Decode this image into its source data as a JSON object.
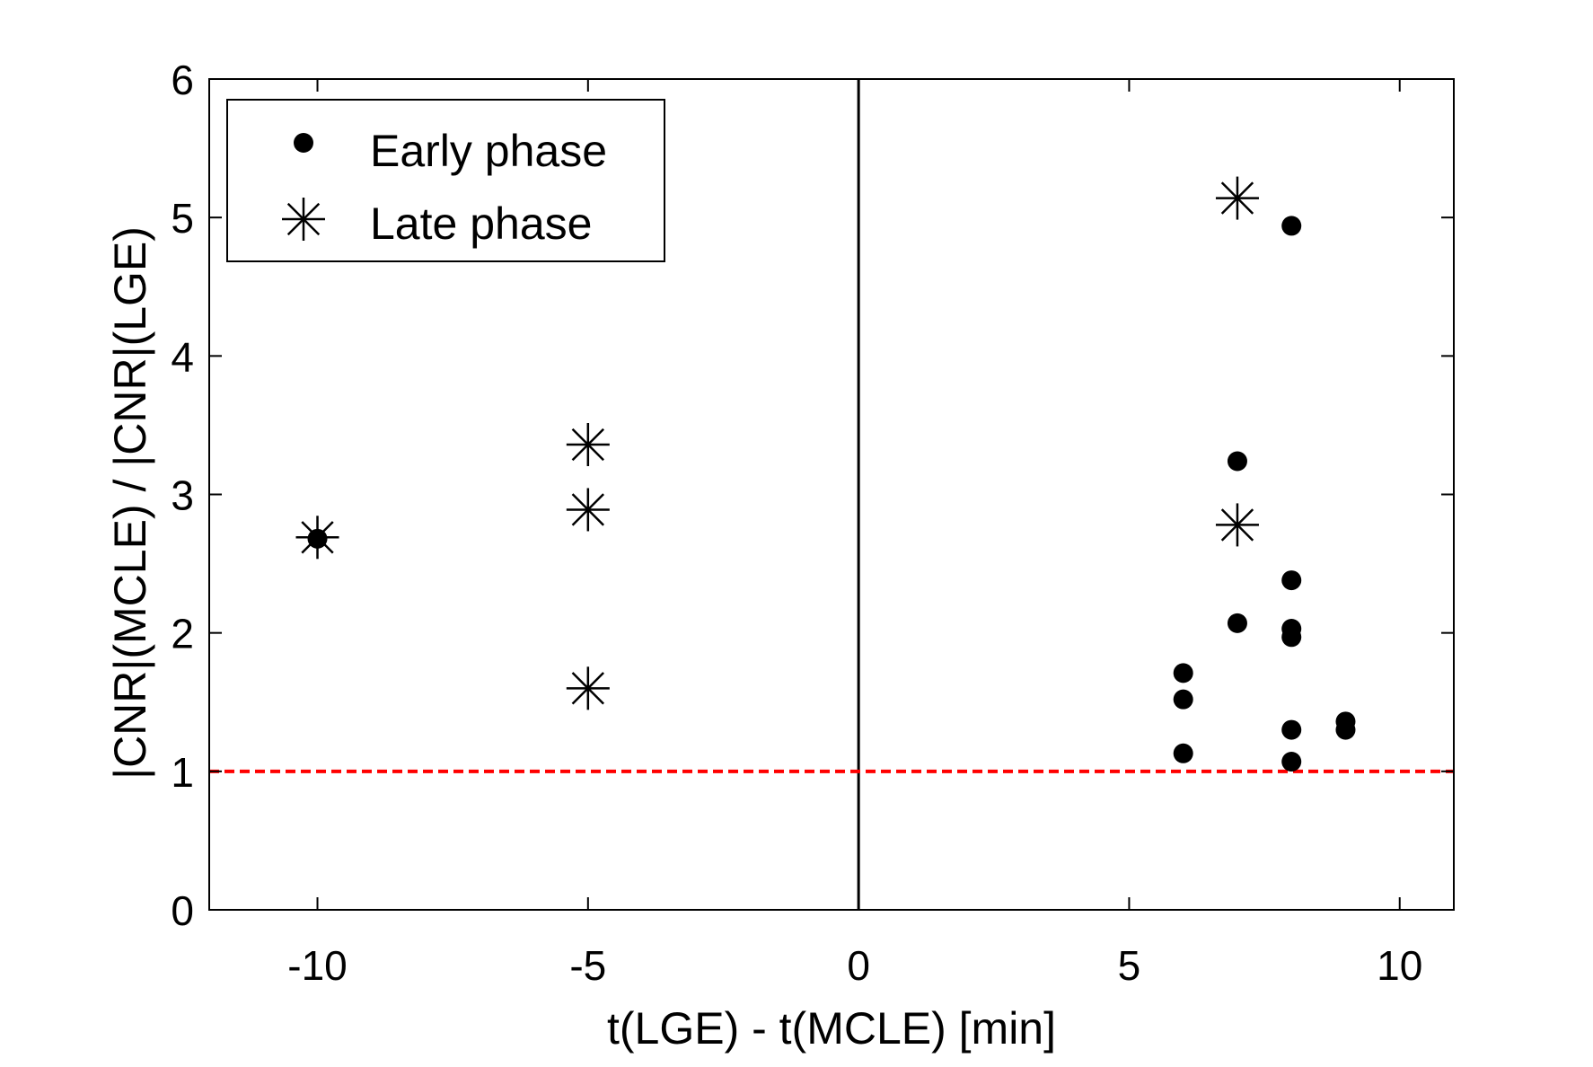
{
  "chart_data": {
    "type": "scatter",
    "xlabel": "t(LGE) - t(MCLE) [min]",
    "ylabel": "|CNR|(MCLE) / |CNR|(LGE)",
    "xlim": [
      -12,
      11
    ],
    "ylim": [
      0,
      6
    ],
    "xticks": [
      -10,
      -5,
      0,
      5,
      10
    ],
    "yticks": [
      0,
      1,
      2,
      3,
      4,
      5,
      6
    ],
    "xtick_labels": [
      "-10",
      "-5",
      "0",
      "5",
      "10"
    ],
    "ytick_labels": [
      "0",
      "1",
      "2",
      "3",
      "4",
      "5",
      "6"
    ],
    "reference_lines": [
      {
        "orientation": "vertical",
        "value": 0,
        "color": "#000000",
        "style": "solid"
      },
      {
        "orientation": "horizontal",
        "value": 1,
        "color": "#ff0000",
        "style": "dashed"
      }
    ],
    "legend_position": "top-left",
    "series": [
      {
        "name": "Early phase",
        "marker": "filled-circle",
        "points": [
          [
            -10,
            2.68
          ],
          [
            6,
            1.71
          ],
          [
            6,
            1.52
          ],
          [
            6,
            1.13
          ],
          [
            7,
            3.24
          ],
          [
            7,
            2.07
          ],
          [
            8,
            4.94
          ],
          [
            8,
            2.38
          ],
          [
            8,
            2.03
          ],
          [
            8,
            1.97
          ],
          [
            8,
            1.3
          ],
          [
            8,
            1.07
          ],
          [
            9,
            1.36
          ],
          [
            9,
            1.3
          ]
        ]
      },
      {
        "name": "Late phase",
        "marker": "asterisk",
        "points": [
          [
            -10,
            2.69
          ],
          [
            -5,
            3.36
          ],
          [
            -5,
            2.89
          ],
          [
            -5,
            1.6
          ],
          [
            7,
            5.14
          ],
          [
            7,
            2.78
          ]
        ]
      }
    ]
  }
}
